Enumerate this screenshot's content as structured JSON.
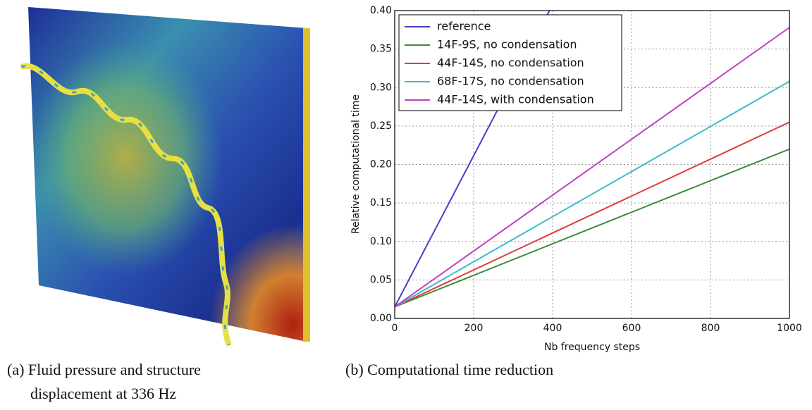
{
  "image_caption": [
    "(a) Fluid pressure and structure",
    "displacement at 336 Hz"
  ],
  "chart_data": {
    "type": "line",
    "caption": "(b) Computational time reduction",
    "x_label": "Nb frequency steps",
    "y_label": "Relative computational time",
    "xlim": [
      0,
      1000
    ],
    "ylim": [
      0,
      0.4
    ],
    "xticks": [
      0,
      200,
      400,
      600,
      800,
      1000
    ],
    "yticks": [
      {
        "value": 0,
        "label": "0.00"
      },
      {
        "value": 0.05,
        "label": "0.05"
      },
      {
        "value": 0.1,
        "label": "0.10"
      },
      {
        "value": 0.15,
        "label": "0.15"
      },
      {
        "value": 0.2,
        "label": "0.20"
      },
      {
        "value": 0.25,
        "label": "0.25"
      },
      {
        "value": 0.3,
        "label": "0.30"
      },
      {
        "value": 0.35,
        "label": "0.35"
      },
      {
        "value": 0.4,
        "label": "0.40"
      }
    ],
    "grid": true,
    "legend": "upper left",
    "series": [
      {
        "name": "reference",
        "color": "#4040c8",
        "x": [
          0,
          392
        ],
        "values": [
          0.015,
          0.4
        ]
      },
      {
        "name": "14F-9S, no condensation",
        "color": "#3a8f3a",
        "x": [
          0,
          1000
        ],
        "values": [
          0.015,
          0.22
        ]
      },
      {
        "name": "44F-14S, no condensation",
        "color": "#e03c3c",
        "x": [
          0,
          1000
        ],
        "values": [
          0.015,
          0.255
        ]
      },
      {
        "name": "68F-17S, no condensation",
        "color": "#3cbcc8",
        "x": [
          0,
          1000
        ],
        "values": [
          0.015,
          0.308
        ]
      },
      {
        "name": "44F-14S, with condensation",
        "color": "#c040c0",
        "x": [
          0,
          1000
        ],
        "values": [
          0.015,
          0.378
        ]
      }
    ]
  }
}
